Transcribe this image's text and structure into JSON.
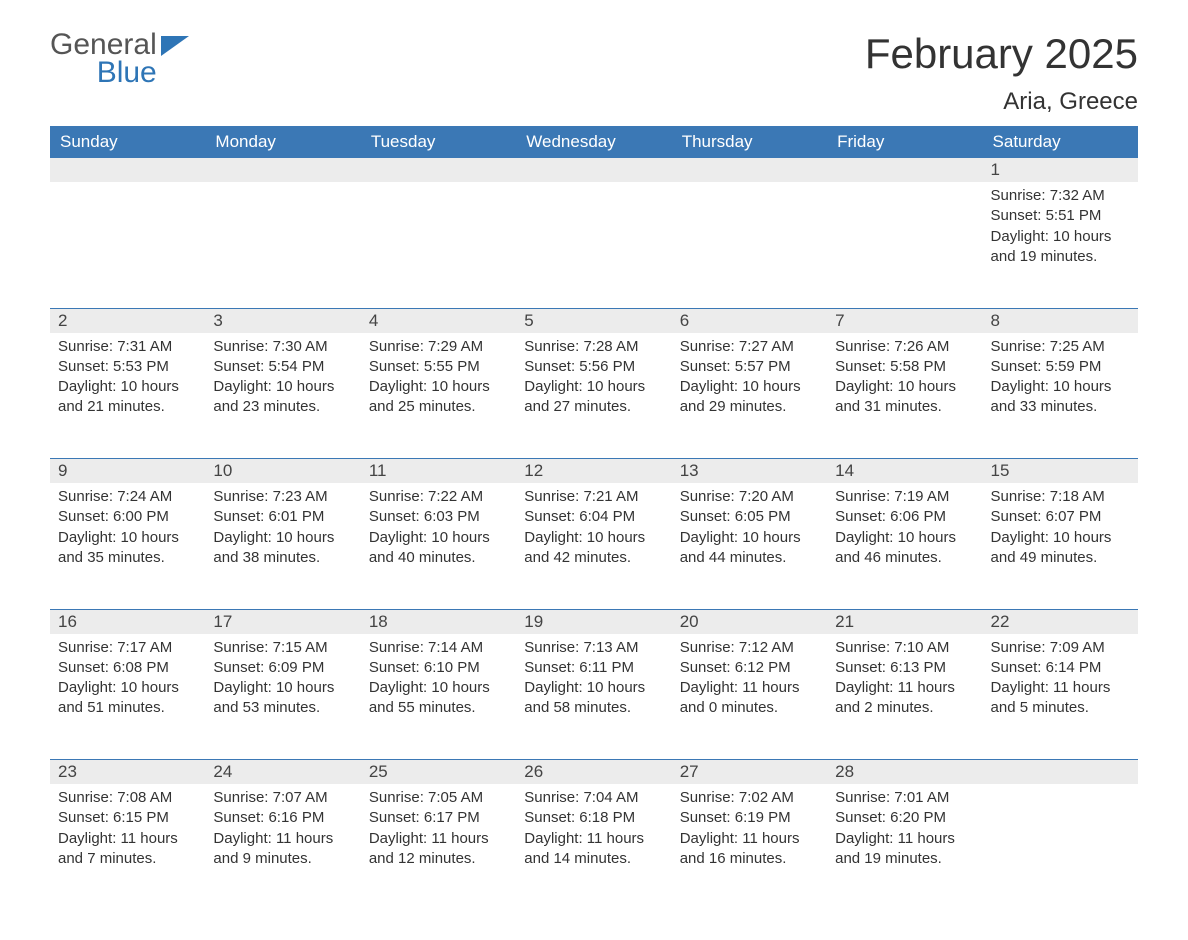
{
  "logo": {
    "general": "General",
    "blue": "Blue"
  },
  "title": "February 2025",
  "location": "Aria, Greece",
  "colors": {
    "header_bg": "#3b78b5",
    "header_fg": "#ffffff",
    "daynum_bg": "#ececec",
    "week_border": "#3b78b5",
    "logo_blue": "#2e75b6",
    "text": "#333333"
  },
  "day_headers": [
    "Sunday",
    "Monday",
    "Tuesday",
    "Wednesday",
    "Thursday",
    "Friday",
    "Saturday"
  ],
  "weeks": [
    [
      null,
      null,
      null,
      null,
      null,
      null,
      {
        "n": "1",
        "sr": "Sunrise: 7:32 AM",
        "ss": "Sunset: 5:51 PM",
        "dl": "Daylight: 10 hours and 19 minutes."
      }
    ],
    [
      {
        "n": "2",
        "sr": "Sunrise: 7:31 AM",
        "ss": "Sunset: 5:53 PM",
        "dl": "Daylight: 10 hours and 21 minutes."
      },
      {
        "n": "3",
        "sr": "Sunrise: 7:30 AM",
        "ss": "Sunset: 5:54 PM",
        "dl": "Daylight: 10 hours and 23 minutes."
      },
      {
        "n": "4",
        "sr": "Sunrise: 7:29 AM",
        "ss": "Sunset: 5:55 PM",
        "dl": "Daylight: 10 hours and 25 minutes."
      },
      {
        "n": "5",
        "sr": "Sunrise: 7:28 AM",
        "ss": "Sunset: 5:56 PM",
        "dl": "Daylight: 10 hours and 27 minutes."
      },
      {
        "n": "6",
        "sr": "Sunrise: 7:27 AM",
        "ss": "Sunset: 5:57 PM",
        "dl": "Daylight: 10 hours and 29 minutes."
      },
      {
        "n": "7",
        "sr": "Sunrise: 7:26 AM",
        "ss": "Sunset: 5:58 PM",
        "dl": "Daylight: 10 hours and 31 minutes."
      },
      {
        "n": "8",
        "sr": "Sunrise: 7:25 AM",
        "ss": "Sunset: 5:59 PM",
        "dl": "Daylight: 10 hours and 33 minutes."
      }
    ],
    [
      {
        "n": "9",
        "sr": "Sunrise: 7:24 AM",
        "ss": "Sunset: 6:00 PM",
        "dl": "Daylight: 10 hours and 35 minutes."
      },
      {
        "n": "10",
        "sr": "Sunrise: 7:23 AM",
        "ss": "Sunset: 6:01 PM",
        "dl": "Daylight: 10 hours and 38 minutes."
      },
      {
        "n": "11",
        "sr": "Sunrise: 7:22 AM",
        "ss": "Sunset: 6:03 PM",
        "dl": "Daylight: 10 hours and 40 minutes."
      },
      {
        "n": "12",
        "sr": "Sunrise: 7:21 AM",
        "ss": "Sunset: 6:04 PM",
        "dl": "Daylight: 10 hours and 42 minutes."
      },
      {
        "n": "13",
        "sr": "Sunrise: 7:20 AM",
        "ss": "Sunset: 6:05 PM",
        "dl": "Daylight: 10 hours and 44 minutes."
      },
      {
        "n": "14",
        "sr": "Sunrise: 7:19 AM",
        "ss": "Sunset: 6:06 PM",
        "dl": "Daylight: 10 hours and 46 minutes."
      },
      {
        "n": "15",
        "sr": "Sunrise: 7:18 AM",
        "ss": "Sunset: 6:07 PM",
        "dl": "Daylight: 10 hours and 49 minutes."
      }
    ],
    [
      {
        "n": "16",
        "sr": "Sunrise: 7:17 AM",
        "ss": "Sunset: 6:08 PM",
        "dl": "Daylight: 10 hours and 51 minutes."
      },
      {
        "n": "17",
        "sr": "Sunrise: 7:15 AM",
        "ss": "Sunset: 6:09 PM",
        "dl": "Daylight: 10 hours and 53 minutes."
      },
      {
        "n": "18",
        "sr": "Sunrise: 7:14 AM",
        "ss": "Sunset: 6:10 PM",
        "dl": "Daylight: 10 hours and 55 minutes."
      },
      {
        "n": "19",
        "sr": "Sunrise: 7:13 AM",
        "ss": "Sunset: 6:11 PM",
        "dl": "Daylight: 10 hours and 58 minutes."
      },
      {
        "n": "20",
        "sr": "Sunrise: 7:12 AM",
        "ss": "Sunset: 6:12 PM",
        "dl": "Daylight: 11 hours and 0 minutes."
      },
      {
        "n": "21",
        "sr": "Sunrise: 7:10 AM",
        "ss": "Sunset: 6:13 PM",
        "dl": "Daylight: 11 hours and 2 minutes."
      },
      {
        "n": "22",
        "sr": "Sunrise: 7:09 AM",
        "ss": "Sunset: 6:14 PM",
        "dl": "Daylight: 11 hours and 5 minutes."
      }
    ],
    [
      {
        "n": "23",
        "sr": "Sunrise: 7:08 AM",
        "ss": "Sunset: 6:15 PM",
        "dl": "Daylight: 11 hours and 7 minutes."
      },
      {
        "n": "24",
        "sr": "Sunrise: 7:07 AM",
        "ss": "Sunset: 6:16 PM",
        "dl": "Daylight: 11 hours and 9 minutes."
      },
      {
        "n": "25",
        "sr": "Sunrise: 7:05 AM",
        "ss": "Sunset: 6:17 PM",
        "dl": "Daylight: 11 hours and 12 minutes."
      },
      {
        "n": "26",
        "sr": "Sunrise: 7:04 AM",
        "ss": "Sunset: 6:18 PM",
        "dl": "Daylight: 11 hours and 14 minutes."
      },
      {
        "n": "27",
        "sr": "Sunrise: 7:02 AM",
        "ss": "Sunset: 6:19 PM",
        "dl": "Daylight: 11 hours and 16 minutes."
      },
      {
        "n": "28",
        "sr": "Sunrise: 7:01 AM",
        "ss": "Sunset: 6:20 PM",
        "dl": "Daylight: 11 hours and 19 minutes."
      },
      null
    ]
  ]
}
